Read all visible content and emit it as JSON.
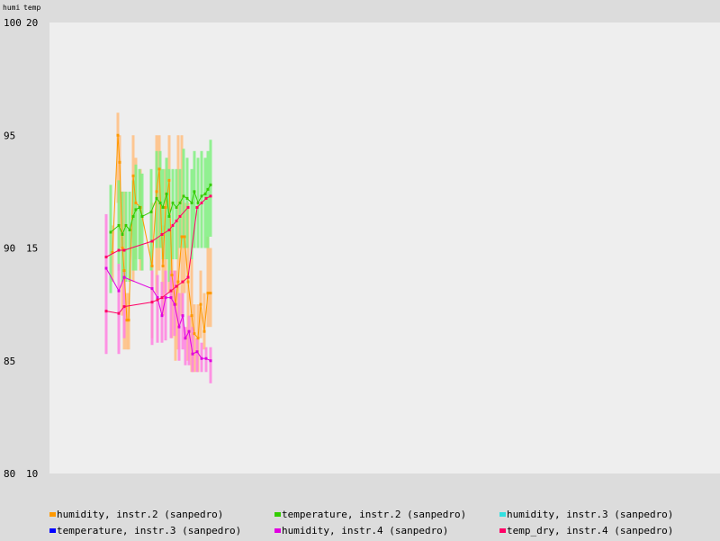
{
  "chart_data": {
    "type": "line",
    "left_axis_title": "humi",
    "right_axis_title": "temp",
    "left_ticks": [
      "100",
      "95",
      "90",
      "85",
      "80"
    ],
    "right_ticks": [
      "20",
      "15",
      "10"
    ],
    "left_ylim": [
      80,
      100
    ],
    "right_ylim": [
      10,
      20
    ],
    "grid": false,
    "legend_position": "bottom",
    "series": [
      {
        "name": "humidity, instr.2 (sanpedro)",
        "axis": "left",
        "color": "#ff9900",
        "band_color": "#ffbe80",
        "x": [
          125,
          131,
          133,
          136,
          138,
          141,
          143,
          148,
          151,
          156,
          169,
          174,
          177,
          181,
          184,
          188,
          191,
          195,
          198,
          202,
          205,
          209,
          213,
          216,
          220,
          223,
          227,
          231,
          234
        ],
        "y": [
          89.8,
          95.0,
          93.8,
          90.0,
          89.0,
          86.8,
          86.8,
          93.2,
          92.0,
          91.8,
          89.2,
          92.5,
          93.5,
          89.2,
          91.8,
          93.0,
          88.8,
          87.5,
          88.5,
          90.5,
          90.5,
          88.5,
          87.0,
          86.2,
          86.0,
          87.5,
          86.3,
          88.0,
          88.0
        ],
        "band_low": [
          88.5,
          92.0,
          90.0,
          87.0,
          85.5,
          85.5,
          85.5,
          88.5,
          89.5,
          89.0,
          86.0,
          88.0,
          89.0,
          87.0,
          88.0,
          88.0,
          86.0,
          85.0,
          85.5,
          87.0,
          88.0,
          85.0,
          84.5,
          84.5,
          84.5,
          86.0,
          85.5,
          86.5,
          86.5
        ],
        "band_high": [
          91.0,
          96.0,
          95.0,
          92.5,
          92.5,
          88.0,
          88.0,
          95.0,
          94.0,
          93.5,
          92.0,
          95.0,
          95.0,
          91.0,
          93.5,
          95.0,
          91.0,
          89.0,
          95.0,
          95.0,
          92.0,
          92.0,
          89.5,
          87.5,
          87.5,
          89.0,
          88.0,
          90.5,
          90.0
        ]
      },
      {
        "name": "temperature, instr.2 (sanpedro)",
        "axis": "left",
        "color": "#33cc00",
        "band_color": "#80f080",
        "x": [
          123,
          132,
          136,
          140,
          144,
          148,
          151,
          155,
          158,
          168,
          174,
          178,
          181,
          185,
          188,
          192,
          196,
          200,
          204,
          208,
          213,
          216,
          220,
          224,
          228,
          231,
          234
        ],
        "y": [
          90.7,
          91.0,
          90.6,
          91.0,
          90.8,
          91.4,
          91.7,
          91.8,
          91.4,
          91.6,
          92.2,
          92.0,
          91.8,
          92.4,
          91.4,
          92.0,
          91.8,
          92.0,
          92.3,
          92.2,
          92.0,
          92.5,
          92.0,
          92.3,
          92.4,
          92.6,
          92.8
        ],
        "band_low": [
          88.0,
          89.0,
          88.5,
          88.5,
          88.5,
          89.0,
          89.0,
          89.5,
          89.0,
          89.0,
          90.0,
          90.0,
          89.5,
          89.5,
          88.5,
          89.5,
          89.5,
          90.0,
          90.0,
          90.0,
          89.5,
          90.0,
          90.0,
          90.0,
          90.0,
          90.0,
          90.5
        ],
        "band_high": [
          92.8,
          93.0,
          92.5,
          92.5,
          92.5,
          93.0,
          93.7,
          93.5,
          93.3,
          93.5,
          94.3,
          94.3,
          93.5,
          94.0,
          93.5,
          93.5,
          93.5,
          93.5,
          94.4,
          94.0,
          93.5,
          94.3,
          94.0,
          94.3,
          94.0,
          94.3,
          94.8
        ]
      },
      {
        "name": "humidity, instr.3 (sanpedro)",
        "axis": "left",
        "color": "#33e0e0",
        "band_color": "#99f0f0",
        "x": [],
        "y": [],
        "band_low": [],
        "band_high": []
      },
      {
        "name": "temperature, instr.3 (sanpedro)",
        "axis": "left",
        "color": "#0000ff",
        "band_color": "#8080ff",
        "x": [],
        "y": [],
        "band_low": [],
        "band_high": []
      },
      {
        "name": "humidity, instr.4 (sanpedro)",
        "axis": "left",
        "color": "#e000e0",
        "band_color": "#ff80e0",
        "x": [
          118,
          132,
          138,
          169,
          175,
          180,
          184,
          190,
          194,
          199,
          203,
          206,
          210,
          214,
          219,
          224,
          229,
          234
        ],
        "y": [
          89.1,
          88.1,
          88.7,
          88.2,
          87.8,
          87.0,
          87.8,
          87.8,
          87.5,
          86.5,
          87.0,
          86.0,
          86.3,
          85.3,
          85.4,
          85.1,
          85.1,
          85.0
        ],
        "band_low": [
          85.3,
          85.3,
          86.0,
          85.7,
          85.8,
          85.8,
          85.9,
          86.0,
          86.1,
          85.0,
          85.5,
          84.8,
          84.8,
          84.5,
          84.5,
          84.5,
          84.5,
          84.0
        ],
        "band_high": [
          91.5,
          89.3,
          89.0,
          89.0,
          88.8,
          88.5,
          89.0,
          89.0,
          89.0,
          88.0,
          88.0,
          86.5,
          87.0,
          86.5,
          86.0,
          85.8,
          85.6,
          85.6
        ]
      },
      {
        "name": "temp_dry, instr.4 (sanpedro)",
        "axis": "left",
        "color": "#ff0066",
        "band_color": "#ff8090",
        "x": [
          118,
          132,
          138,
          169,
          180,
          188,
          192,
          196,
          200,
          209
        ],
        "y": [
          89.6,
          89.9,
          89.9,
          90.3,
          90.6,
          90.8,
          91.0,
          91.2,
          91.4,
          91.8
        ],
        "band_low": [],
        "band_high": []
      },
      {
        "name": "temp_dry, instr.4 (sanpedro) low",
        "axis": "left",
        "color": "#ff0066",
        "band_color": "#ff8090",
        "x": [
          118,
          132,
          138,
          169,
          175,
          180,
          190,
          196,
          203,
          209,
          219,
          224,
          229,
          234
        ],
        "y": [
          87.2,
          87.1,
          87.4,
          87.6,
          87.7,
          87.8,
          88.1,
          88.3,
          88.5,
          88.7,
          91.8,
          92.0,
          92.2,
          92.3
        ],
        "band_low": [],
        "band_high": []
      }
    ]
  }
}
